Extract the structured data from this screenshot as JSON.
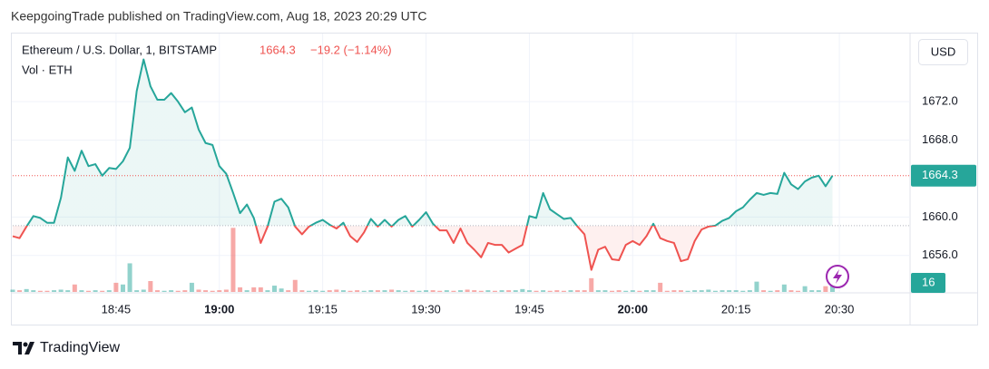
{
  "header": {
    "byline": "KeepgoingTrade published on TradingView.com, Aug 18, 2023 20:29 UTC"
  },
  "footer": {
    "brand": "TradingView"
  },
  "chart_data": {
    "type": "baseline",
    "currency": "USD",
    "change": "−19.2 (−1.14%)",
    "baseline": 1659.1,
    "colors": {
      "up": "#26a69a",
      "down": "#ef5350"
    },
    "grid": true,
    "x": [
      "18:30",
      "18:31",
      "18:32",
      "18:33",
      "18:34",
      "18:35",
      "18:36",
      "18:37",
      "18:38",
      "18:39",
      "18:40",
      "18:41",
      "18:42",
      "18:43",
      "18:44",
      "18:45",
      "18:46",
      "18:47",
      "18:48",
      "18:49",
      "18:50",
      "18:51",
      "18:52",
      "18:53",
      "18:54",
      "18:55",
      "18:56",
      "18:57",
      "18:58",
      "18:59",
      "19:00",
      "19:01",
      "19:02",
      "19:03",
      "19:04",
      "19:05",
      "19:06",
      "19:07",
      "19:08",
      "19:09",
      "19:10",
      "19:11",
      "19:12",
      "19:13",
      "19:14",
      "19:15",
      "19:16",
      "19:17",
      "19:18",
      "19:19",
      "19:20",
      "19:21",
      "19:22",
      "19:23",
      "19:24",
      "19:25",
      "19:26",
      "19:27",
      "19:28",
      "19:29",
      "19:30",
      "19:31",
      "19:32",
      "19:33",
      "19:34",
      "19:35",
      "19:36",
      "19:37",
      "19:38",
      "19:39",
      "19:40",
      "19:41",
      "19:42",
      "19:43",
      "19:44",
      "19:45",
      "19:46",
      "19:47",
      "19:48",
      "19:49",
      "19:50",
      "19:51",
      "19:52",
      "19:53",
      "19:54",
      "19:55",
      "19:56",
      "19:57",
      "19:58",
      "19:59",
      "20:00",
      "20:01",
      "20:02",
      "20:03",
      "20:04",
      "20:05",
      "20:06",
      "20:07",
      "20:08",
      "20:09",
      "20:10",
      "20:11",
      "20:12",
      "20:13",
      "20:14",
      "20:15",
      "20:16",
      "20:17",
      "20:18",
      "20:19",
      "20:20",
      "20:21",
      "20:22",
      "20:23",
      "20:24",
      "20:25",
      "20:26",
      "20:27",
      "20:28",
      "20:29"
    ],
    "series": [
      {
        "name": "Ethereum / U.S. Dollar, 1, BITSTAMP",
        "values": [
          1658.0,
          1657.8,
          1659.0,
          1660.1,
          1659.9,
          1659.4,
          1659.4,
          1662.0,
          1666.2,
          1664.8,
          1666.9,
          1665.3,
          1665.5,
          1664.3,
          1665.1,
          1665.0,
          1665.8,
          1667.2,
          1673.1,
          1676.4,
          1673.6,
          1672.2,
          1672.2,
          1672.9,
          1672.0,
          1670.9,
          1671.4,
          1669.1,
          1667.7,
          1667.5,
          1665.3,
          1664.5,
          1662.5,
          1660.4,
          1661.3,
          1659.9,
          1657.3,
          1659.0,
          1661.6,
          1661.9,
          1661.0,
          1659.0,
          1658.2,
          1659.0,
          1659.4,
          1659.7,
          1659.2,
          1658.8,
          1659.4,
          1658.0,
          1657.4,
          1658.4,
          1659.8,
          1659.0,
          1659.7,
          1659.0,
          1659.7,
          1660.1,
          1659.0,
          1659.7,
          1660.5,
          1659.3,
          1658.6,
          1658.6,
          1657.3,
          1658.8,
          1657.3,
          1656.6,
          1655.8,
          1657.3,
          1657.1,
          1657.1,
          1656.3,
          1656.7,
          1657.1,
          1660.1,
          1659.9,
          1662.5,
          1660.8,
          1660.3,
          1659.8,
          1659.9,
          1659.0,
          1658.2,
          1654.5,
          1656.6,
          1656.9,
          1655.6,
          1655.5,
          1657.1,
          1657.5,
          1657.1,
          1658.0,
          1659.3,
          1657.8,
          1657.5,
          1657.3,
          1655.4,
          1655.6,
          1657.5,
          1658.7,
          1659.0,
          1659.1,
          1659.6,
          1659.9,
          1660.6,
          1661.0,
          1661.8,
          1662.5,
          1662.3,
          1662.5,
          1662.4,
          1664.6,
          1663.4,
          1662.9,
          1663.7,
          1664.1,
          1664.3,
          1663.2,
          1664.3
        ]
      },
      {
        "name": "Vol · ETH",
        "axis": "y2",
        "values": [
          4,
          3,
          5,
          3,
          2,
          2,
          3,
          4,
          3,
          13,
          3,
          2,
          3,
          2,
          3,
          16,
          13,
          50,
          3,
          4,
          19,
          3,
          2,
          3,
          2,
          3,
          16,
          4,
          3,
          2,
          3,
          4,
          112,
          8,
          3,
          8,
          8,
          3,
          11,
          6,
          3,
          21,
          3,
          2,
          3,
          2,
          3,
          4,
          3,
          2,
          3,
          2,
          3,
          3,
          3,
          4,
          3,
          2,
          3,
          2,
          3,
          3,
          2,
          3,
          2,
          3,
          4,
          3,
          2,
          3,
          2,
          3,
          3,
          3,
          5,
          3,
          2,
          3,
          2,
          3,
          2,
          3,
          3,
          3,
          24,
          3,
          3,
          2,
          3,
          2,
          3,
          2,
          3,
          3,
          16,
          2,
          3,
          3,
          2,
          3,
          3,
          4,
          2,
          3,
          3,
          3,
          2,
          3,
          18,
          3,
          2,
          3,
          13,
          3,
          2,
          10,
          3,
          3,
          10,
          16
        ]
      }
    ],
    "xlim": [
      "18:30",
      "20:40"
    ],
    "xticks": [
      "18:45",
      "19:00",
      "19:15",
      "19:30",
      "19:45",
      "20:00",
      "20:15",
      "20:30"
    ],
    "ylim": [
      1652.2,
      1679.0
    ],
    "yticks": [
      {
        "value": 1656,
        "label": "1656.0"
      },
      {
        "value": 1660,
        "label": "1660.0"
      },
      {
        "value": 1668,
        "label": "1668.0"
      },
      {
        "value": 1672,
        "label": "1672.0"
      }
    ],
    "y2lim": [
      0,
      450
    ]
  }
}
